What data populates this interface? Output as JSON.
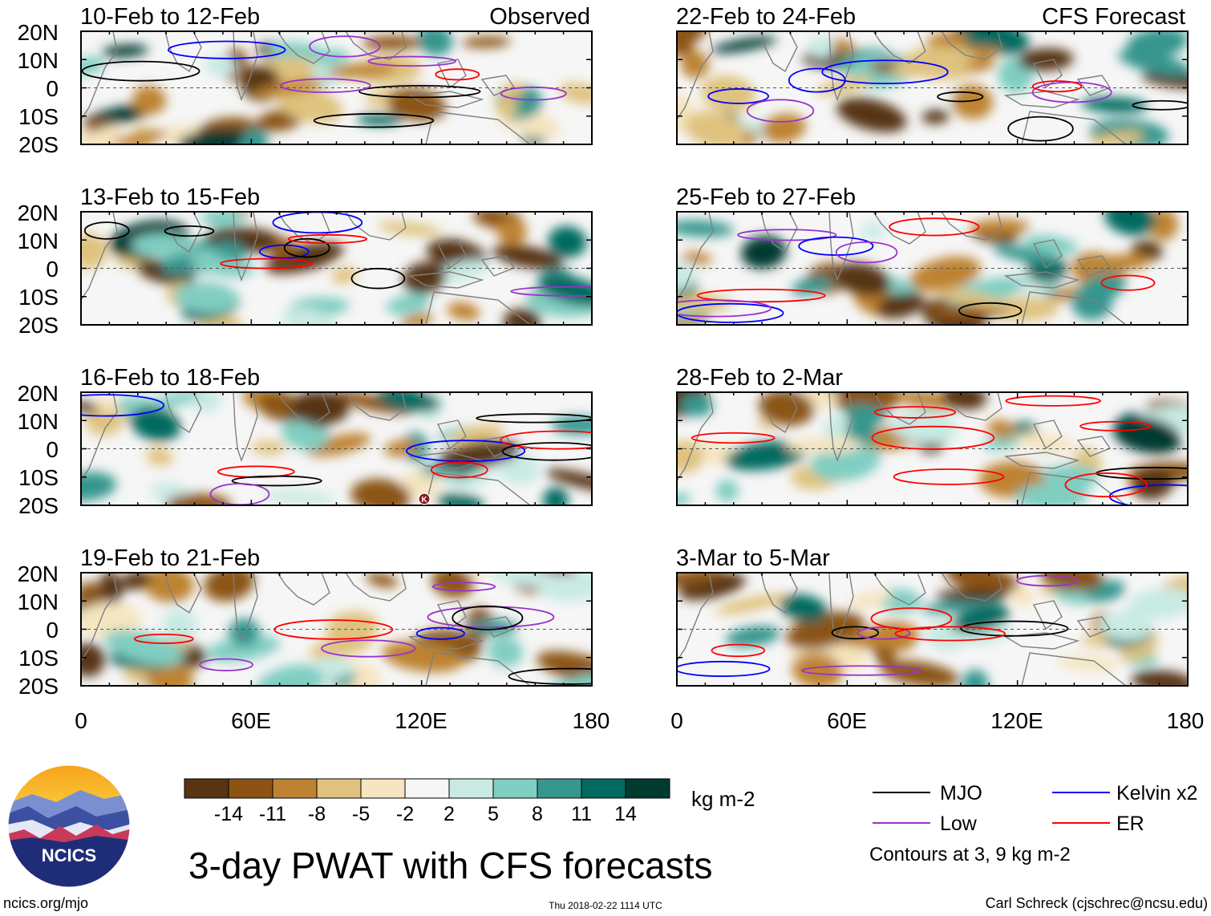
{
  "figure": {
    "title": "3-day PWAT with CFS forecasts",
    "footer_left": "ncics.org/mjo",
    "footer_center": "Thu 2018-02-22 1114 UTC",
    "footer_right": "Carl Schreck (cjschrec@ncsu.edu)",
    "logo_text": "NCICS"
  },
  "columns": {
    "left_label": "Observed",
    "right_label": "CFS Forecast"
  },
  "panels_left": [
    {
      "date": "10-Feb to 12-Feb"
    },
    {
      "date": "13-Feb to 15-Feb"
    },
    {
      "date": "16-Feb to 18-Feb"
    },
    {
      "date": "19-Feb to 21-Feb"
    }
  ],
  "panels_right": [
    {
      "date": "22-Feb to 24-Feb"
    },
    {
      "date": "25-Feb to 27-Feb"
    },
    {
      "date": "28-Feb to 2-Mar"
    },
    {
      "date": "3-Mar to 5-Mar"
    }
  ],
  "axes": {
    "lat_labels": [
      "20N",
      "10N",
      "0",
      "10S",
      "20S"
    ],
    "lon_labels": [
      "0",
      "60E",
      "120E",
      "180"
    ]
  },
  "colorbar": {
    "unit": "kg m-2",
    "colors": [
      "#573513",
      "#8b5414",
      "#bd8333",
      "#dfc27e",
      "#f5e5c0",
      "#f6f6f6",
      "#c8eae3",
      "#80cdc1",
      "#36968e",
      "#016a60",
      "#003b30"
    ],
    "tick_labels": [
      "-14",
      "-11",
      "-8",
      "-5",
      "-2",
      "2",
      "5",
      "8",
      "11",
      "14"
    ]
  },
  "legend": {
    "items": [
      {
        "label": "MJO",
        "color": "#000000"
      },
      {
        "label": "Kelvin x2",
        "color": "#0000ff"
      },
      {
        "label": "Low",
        "color": "#9932cc"
      },
      {
        "label": "ER",
        "color": "#ff0000"
      }
    ],
    "note": "Contours at 3, 9 kg m-2"
  },
  "storm_marker": {
    "label": "K"
  }
}
